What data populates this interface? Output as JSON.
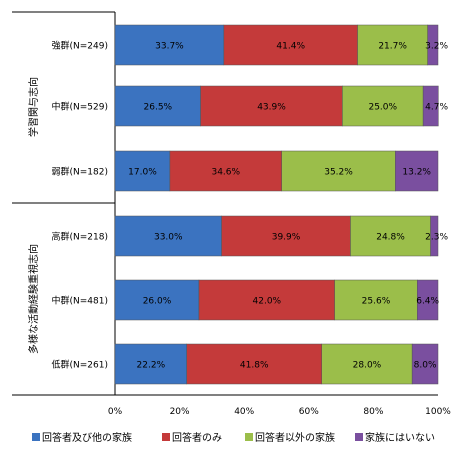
{
  "chart_data": {
    "type": "bar",
    "orientation": "horizontal",
    "stacked": "percent",
    "xlim": [
      0,
      100
    ],
    "x_ticks": [
      "0%",
      "20%",
      "40%",
      "60%",
      "80%",
      "100%"
    ],
    "groups": [
      {
        "label": "学習関与志向",
        "categories": [
          "強群(N=249)",
          "中群(N=529)",
          "弱群(N=182)"
        ]
      },
      {
        "label": "多様な活動経験重視志向",
        "categories": [
          "高群(N=218)",
          "中群(N=481)",
          "低群(N=261)"
        ]
      }
    ],
    "series": [
      {
        "name": "回答者及び他の家族",
        "color": "#3b73c0",
        "values": [
          33.7,
          26.5,
          17.0,
          33.0,
          26.0,
          22.2
        ]
      },
      {
        "name": "回答者のみ",
        "color": "#c43a3a",
        "values": [
          41.4,
          43.9,
          34.6,
          39.9,
          42.0,
          41.8
        ]
      },
      {
        "name": "回答者以外の家族",
        "color": "#9bbe4a",
        "values": [
          21.7,
          25.0,
          35.2,
          24.8,
          25.6,
          28.0
        ]
      },
      {
        "name": "家族にはいない",
        "color": "#7a4f9f",
        "values": [
          3.2,
          4.7,
          13.2,
          2.3,
          6.4,
          8.0
        ]
      }
    ],
    "value_labels": [
      [
        "33.7%",
        "41.4%",
        "21.7%",
        "3.2%"
      ],
      [
        "26.5%",
        "43.9%",
        "25.0%",
        "4.7%"
      ],
      [
        "17.0%",
        "34.6%",
        "35.2%",
        "13.2%"
      ],
      [
        "33.0%",
        "39.9%",
        "24.8%",
        "2.3%"
      ],
      [
        "26.0%",
        "42.0%",
        "25.6%",
        "6.4%"
      ],
      [
        "22.2%",
        "41.8%",
        "28.0%",
        "8.0%"
      ]
    ],
    "legend_position": "bottom"
  }
}
